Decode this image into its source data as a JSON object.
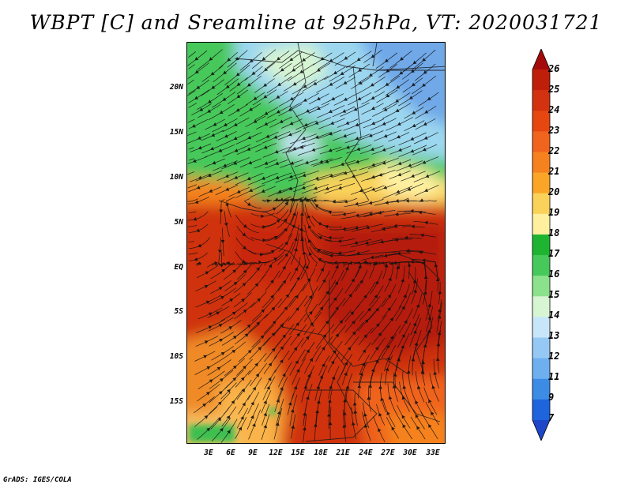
{
  "title": "WBPT [C] and Sreamline at 925hPa, VT: 2020031721",
  "credit": "GrADS: IGES/COLA",
  "map": {
    "variable": "Wet-bulb potential temperature",
    "units": "C",
    "level": "925hPa",
    "valid_time": "2020031721",
    "lat_labels": [
      "20N",
      "15N",
      "10N",
      "5N",
      "EQ",
      "5S",
      "10S",
      "15S"
    ],
    "lon_labels": [
      "3E",
      "6E",
      "9E",
      "12E",
      "15E",
      "18E",
      "21E",
      "24E",
      "27E",
      "30E",
      "33E"
    ]
  },
  "colorbar": {
    "levels": [
      "26",
      "25",
      "24",
      "23",
      "22",
      "21",
      "20",
      "19",
      "18",
      "17",
      "16",
      "15",
      "14",
      "13",
      "12",
      "11",
      "9",
      "7"
    ],
    "colors": [
      "#a50a0a",
      "#be1e0a",
      "#d2320f",
      "#e6460f",
      "#f0641e",
      "#f5821e",
      "#faa528",
      "#fad25a",
      "#fff0a0",
      "#1eb432",
      "#46c85a",
      "#8ce18c",
      "#d7f5d2",
      "#c8e6fa",
      "#96c8f5",
      "#6eaff0",
      "#3c8ce6",
      "#1e64dc",
      "#1e46c8"
    ]
  },
  "colors": {
    "red_core": "#c0250d",
    "orange": "#f08020",
    "green": "#3dbf4f",
    "blue": "#6fa8e8"
  }
}
